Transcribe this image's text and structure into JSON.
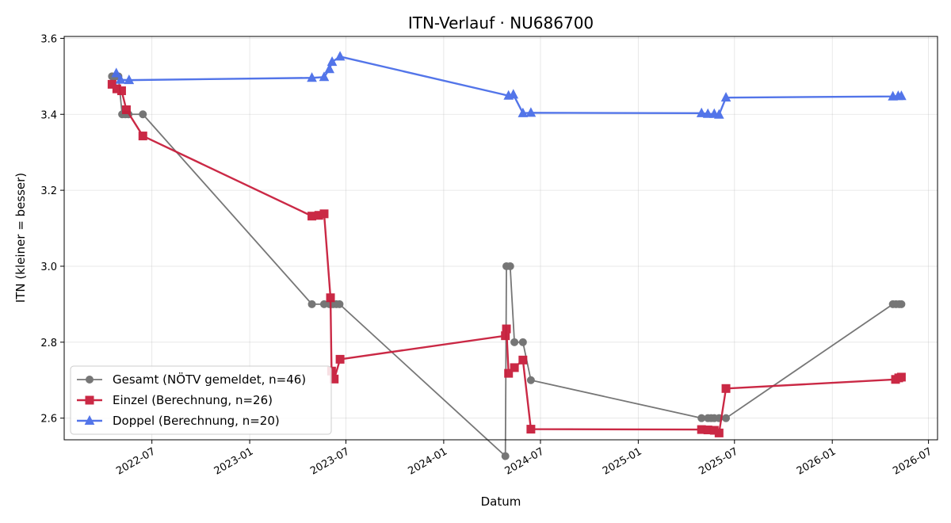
{
  "chart_data": {
    "type": "line",
    "title": "ITN-Verlauf · NU686700",
    "xlabel": "Datum",
    "ylabel": "ITN  (kleiner = besser)",
    "xlim": [
      "2022-01-17",
      "2026-07-18"
    ],
    "ylim": [
      2.543,
      3.605
    ],
    "x_ticks": [
      "2022-07-01",
      "2023-01-01",
      "2023-07-01",
      "2024-01-01",
      "2024-07-01",
      "2025-01-01",
      "2025-07-01",
      "2026-01-01",
      "2026-07-01"
    ],
    "x_tick_labels": [
      "2022-07",
      "2023-01",
      "2023-07",
      "2024-01",
      "2024-07",
      "2025-01",
      "2025-07",
      "2026-01",
      "2026-07"
    ],
    "y_ticks": [
      2.6,
      2.8,
      3.0,
      3.2,
      3.4,
      3.6
    ],
    "y_tick_labels": [
      "2.6",
      "2.8",
      "3.0",
      "3.2",
      "3.4",
      "3.6"
    ],
    "grid": true,
    "legend_position": "lower-left",
    "series": [
      {
        "name": "Gesamt (NÖTV gemeldet, n=46)",
        "color": "#555555",
        "marker": "circle",
        "points": [
          {
            "x": "2022-04-17",
            "y": 3.5
          },
          {
            "x": "2022-04-23",
            "y": 3.5
          },
          {
            "x": "2022-04-29",
            "y": 3.5
          },
          {
            "x": "2022-05-06",
            "y": 3.4
          },
          {
            "x": "2022-05-12",
            "y": 3.4
          },
          {
            "x": "2022-05-18",
            "y": 3.4
          },
          {
            "x": "2022-06-14",
            "y": 3.4
          },
          {
            "x": "2023-04-28",
            "y": 2.9
          },
          {
            "x": "2023-05-21",
            "y": 2.9
          },
          {
            "x": "2023-05-31",
            "y": 2.9
          },
          {
            "x": "2023-06-03",
            "y": 2.9
          },
          {
            "x": "2023-06-07",
            "y": 2.9
          },
          {
            "x": "2023-06-13",
            "y": 2.9
          },
          {
            "x": "2023-06-19",
            "y": 2.9
          },
          {
            "x": "2024-04-26",
            "y": 2.5
          },
          {
            "x": "2024-04-28",
            "y": 3.0
          },
          {
            "x": "2024-05-05",
            "y": 3.0
          },
          {
            "x": "2024-05-13",
            "y": 2.8
          },
          {
            "x": "2024-05-29",
            "y": 2.8
          },
          {
            "x": "2024-06-13",
            "y": 2.7
          },
          {
            "x": "2025-04-30",
            "y": 2.6
          },
          {
            "x": "2025-05-12",
            "y": 2.6
          },
          {
            "x": "2025-05-18",
            "y": 2.6
          },
          {
            "x": "2025-05-24",
            "y": 2.6
          },
          {
            "x": "2025-06-02",
            "y": 2.6
          },
          {
            "x": "2025-06-15",
            "y": 2.6
          },
          {
            "x": "2026-04-25",
            "y": 2.9
          },
          {
            "x": "2026-05-01",
            "y": 2.9
          },
          {
            "x": "2026-05-07",
            "y": 2.9
          },
          {
            "x": "2026-05-11",
            "y": 2.9
          }
        ]
      },
      {
        "name": "Einzel (Berechnung, n=26)",
        "color": "#c81e3c",
        "marker": "square",
        "points": [
          {
            "x": "2022-04-17",
            "y": 3.479
          },
          {
            "x": "2022-04-26",
            "y": 3.467
          },
          {
            "x": "2022-05-05",
            "y": 3.462
          },
          {
            "x": "2022-05-14",
            "y": 3.412
          },
          {
            "x": "2022-06-14",
            "y": 3.343
          },
          {
            "x": "2023-04-28",
            "y": 3.132
          },
          {
            "x": "2023-05-11",
            "y": 3.134
          },
          {
            "x": "2023-05-21",
            "y": 3.138
          },
          {
            "x": "2023-06-02",
            "y": 2.917
          },
          {
            "x": "2023-06-04",
            "y": 2.724
          },
          {
            "x": "2023-06-09",
            "y": 2.703
          },
          {
            "x": "2023-06-20",
            "y": 2.755
          },
          {
            "x": "2024-04-26",
            "y": 2.817
          },
          {
            "x": "2024-04-28",
            "y": 2.835
          },
          {
            "x": "2024-05-02",
            "y": 2.718
          },
          {
            "x": "2024-05-13",
            "y": 2.733
          },
          {
            "x": "2024-05-29",
            "y": 2.753
          },
          {
            "x": "2024-06-13",
            "y": 2.571
          },
          {
            "x": "2025-04-30",
            "y": 2.57
          },
          {
            "x": "2025-05-12",
            "y": 2.569
          },
          {
            "x": "2025-05-24",
            "y": 2.568
          },
          {
            "x": "2025-06-02",
            "y": 2.561
          },
          {
            "x": "2025-06-15",
            "y": 2.678
          },
          {
            "x": "2026-04-30",
            "y": 2.702
          },
          {
            "x": "2026-05-06",
            "y": 2.706
          },
          {
            "x": "2026-05-11",
            "y": 2.708
          }
        ]
      },
      {
        "name": "Doppel (Berechnung, n=20)",
        "color": "#4a6ee8",
        "marker": "triangle",
        "points": [
          {
            "x": "2022-04-25",
            "y": 3.508
          },
          {
            "x": "2022-05-03",
            "y": 3.491
          },
          {
            "x": "2022-05-19",
            "y": 3.49
          },
          {
            "x": "2023-04-28",
            "y": 3.496
          },
          {
            "x": "2023-05-21",
            "y": 3.498
          },
          {
            "x": "2023-05-31",
            "y": 3.519
          },
          {
            "x": "2023-06-05",
            "y": 3.538
          },
          {
            "x": "2023-06-20",
            "y": 3.552
          },
          {
            "x": "2024-05-02",
            "y": 3.449
          },
          {
            "x": "2024-05-11",
            "y": 3.452
          },
          {
            "x": "2024-05-29",
            "y": 3.403
          },
          {
            "x": "2024-06-13",
            "y": 3.404
          },
          {
            "x": "2025-04-30",
            "y": 3.403
          },
          {
            "x": "2025-05-12",
            "y": 3.401
          },
          {
            "x": "2025-05-24",
            "y": 3.401
          },
          {
            "x": "2025-06-02",
            "y": 3.399
          },
          {
            "x": "2025-06-15",
            "y": 3.444
          },
          {
            "x": "2026-04-25",
            "y": 3.447
          },
          {
            "x": "2026-05-05",
            "y": 3.448
          },
          {
            "x": "2026-05-11",
            "y": 3.448
          }
        ]
      }
    ]
  }
}
